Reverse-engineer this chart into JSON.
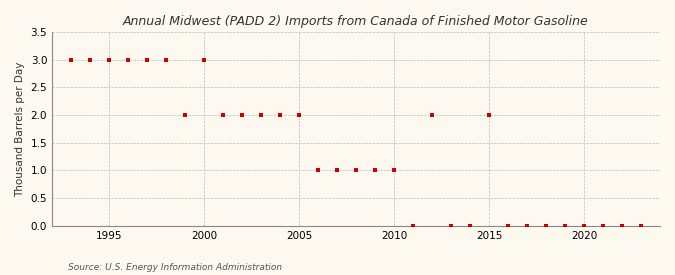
{
  "title": "Annual Midwest (PADD 2) Imports from Canada of Finished Motor Gasoline",
  "ylabel": "Thousand Barrels per Day",
  "source": "Source: U.S. Energy Information Administration",
  "background_color": "#fef9f0",
  "years": [
    1993,
    1994,
    1995,
    1996,
    1997,
    1998,
    1999,
    2000,
    2001,
    2002,
    2003,
    2004,
    2005,
    2006,
    2007,
    2008,
    2009,
    2010,
    2011,
    2012,
    2013,
    2014,
    2015,
    2016,
    2017,
    2018,
    2019,
    2020,
    2021,
    2022,
    2023
  ],
  "values": [
    3.0,
    3.0,
    3.0,
    3.0,
    3.0,
    3.0,
    2.0,
    3.0,
    2.0,
    2.0,
    2.0,
    2.0,
    2.0,
    1.0,
    1.0,
    1.0,
    1.0,
    1.0,
    0.0,
    2.0,
    0.0,
    0.0,
    2.0,
    0.0,
    0.0,
    0.0,
    0.0,
    0.0,
    0.0,
    0.0,
    0.0
  ],
  "marker_color": "#cc0000",
  "marker_size": 3.5,
  "ylim": [
    0.0,
    3.5
  ],
  "xlim": [
    1992,
    2024
  ],
  "yticks": [
    0.0,
    0.5,
    1.0,
    1.5,
    2.0,
    2.5,
    3.0,
    3.5
  ],
  "xticks": [
    1995,
    2000,
    2005,
    2010,
    2015,
    2020
  ],
  "grid_color": "#bbbbbb",
  "grid_style": "--",
  "title_fontsize": 9,
  "ylabel_fontsize": 7.5,
  "tick_fontsize": 7.5,
  "source_fontsize": 6.5
}
